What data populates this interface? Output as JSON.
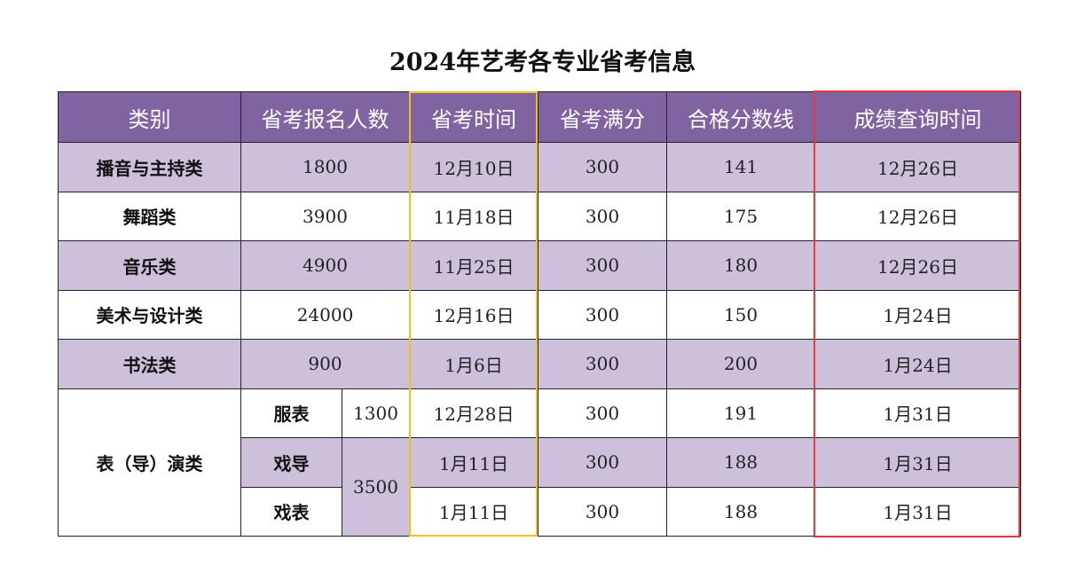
{
  "title": "2024年艺考各专业省考信息",
  "headers": [
    "类别",
    "省考报名人数",
    "省考时间",
    "省考满分",
    "合格分数线",
    "成绩查询时间"
  ],
  "rows": [
    {
      "category": "播音与主持类",
      "count": "1800",
      "date": "12月10日",
      "full": "300",
      "pass": "141",
      "query": "12月26日"
    },
    {
      "category": "舞蹈类",
      "count": "3900",
      "date": "11月18日",
      "full": "300",
      "pass": "175",
      "query": "12月26日"
    },
    {
      "category": "音乐类",
      "count": "4900",
      "date": "11月25日",
      "full": "300",
      "pass": "180",
      "query": "12月26日"
    },
    {
      "category": "美术与设计类",
      "count": "24000",
      "date": "12月16日",
      "full": "300",
      "pass": "150",
      "query": "1月24日"
    },
    {
      "category": "书法类",
      "count": "900",
      "date": "1月6日",
      "full": "300",
      "pass": "200",
      "query": "1月24日"
    }
  ],
  "performance": {
    "category": "表（导）演类",
    "combined_count": "3500",
    "sub": [
      {
        "name": "服表",
        "count": "1300",
        "date": "12月28日",
        "full": "300",
        "pass": "191",
        "query": "1月31日"
      },
      {
        "name": "戏导",
        "date": "1月11日",
        "full": "300",
        "pass": "188",
        "query": "1月31日"
      },
      {
        "name": "戏表",
        "date": "1月11日",
        "full": "300",
        "pass": "188",
        "query": "1月31日"
      }
    ]
  },
  "colors": {
    "header": "#8064a2",
    "band": "#ccc0da",
    "highlight_exam_time": "#f2c21b",
    "highlight_query_time": "#e03c3c"
  }
}
